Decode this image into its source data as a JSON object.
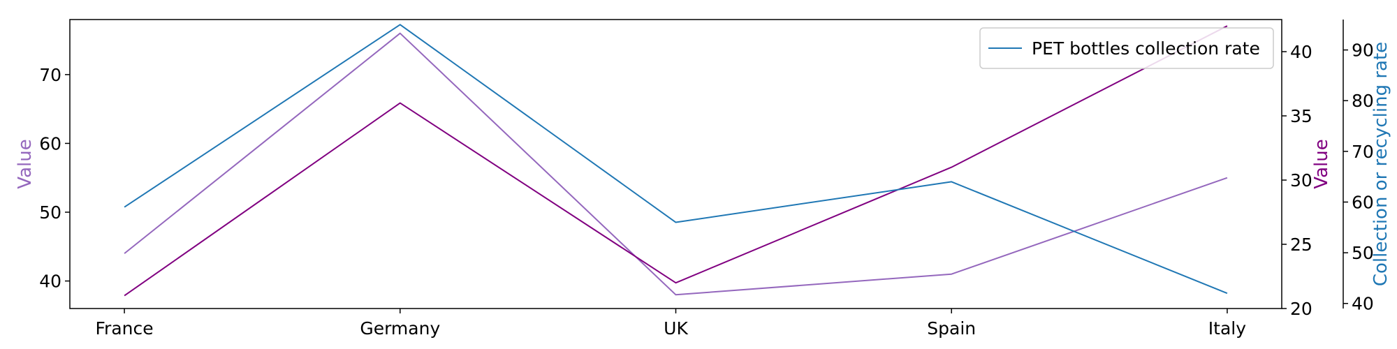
{
  "chart_data": {
    "type": "line",
    "categories": [
      "France",
      "Germany",
      "UK",
      "Spain",
      "Italy"
    ],
    "axes": {
      "left": {
        "label": "Value",
        "label_color": "#9467bd",
        "ylim": [
          36,
          78
        ],
        "ticks": [
          40,
          50,
          60,
          70
        ]
      },
      "right_inner": {
        "label": "Value",
        "label_color": "#800080",
        "ylim": [
          20,
          42.5
        ],
        "ticks": [
          20,
          25,
          30,
          35,
          40
        ]
      },
      "right_outer": {
        "label": "Collection or recycling rate",
        "label_color": "#1f77b4",
        "ylim": [
          39,
          96
        ],
        "ticks": [
          40,
          50,
          60,
          70,
          80,
          90
        ]
      }
    },
    "series": [
      {
        "axis": "left",
        "color": "#9467bd",
        "values": [
          44,
          76,
          38,
          41,
          55
        ]
      },
      {
        "axis": "right_inner",
        "color": "#800080",
        "values": [
          21,
          36,
          22,
          31,
          42
        ]
      },
      {
        "name": "PET bottles collection rate",
        "axis": "right_outer",
        "color": "#1f77b4",
        "values": [
          59,
          95,
          56,
          64,
          42
        ]
      }
    ],
    "legend": {
      "position": "upper-right",
      "entries": [
        "PET bottles collection rate"
      ]
    },
    "grid": false
  }
}
